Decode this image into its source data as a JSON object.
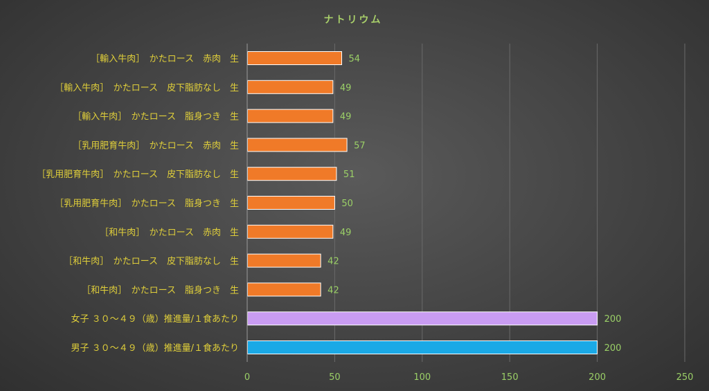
{
  "chart_data": {
    "type": "bar",
    "orientation": "horizontal",
    "title": "ナトリウム",
    "categories": [
      "［輸入牛肉］　かたロース　赤肉　生",
      "［輸入牛肉］　かたロース　皮下脂肪なし　生",
      "［輸入牛肉］　かたロース　脂身つき　生",
      "［乳用肥育牛肉］　かたロース　赤肉　生",
      "［乳用肥育牛肉］　かたロース　皮下脂肪なし　生",
      "［乳用肥育牛肉］　かたロース　脂身つき　生",
      "［和牛肉］　かたロース　赤肉　生",
      "［和牛肉］　かたロース　皮下脂肪なし　生",
      "［和牛肉］　かたロース　脂身つき　生",
      "女子 ３０～４９（歳）推進量/１食あたり",
      "男子 ３０～４９（歳）推進量/１食あたり"
    ],
    "values": [
      54,
      49,
      49,
      57,
      51,
      50,
      49,
      42,
      42,
      200,
      200
    ],
    "colors": [
      "#f07a28",
      "#f07a28",
      "#f07a28",
      "#f07a28",
      "#f07a28",
      "#f07a28",
      "#f07a28",
      "#f07a28",
      "#f07a28",
      "#c99cf2",
      "#1aa9e6"
    ],
    "xlim": [
      0,
      250
    ],
    "xticks": [
      0,
      50,
      100,
      150,
      200,
      250
    ],
    "xlabel": "",
    "ylabel": "",
    "grid": true,
    "legend": "none"
  }
}
